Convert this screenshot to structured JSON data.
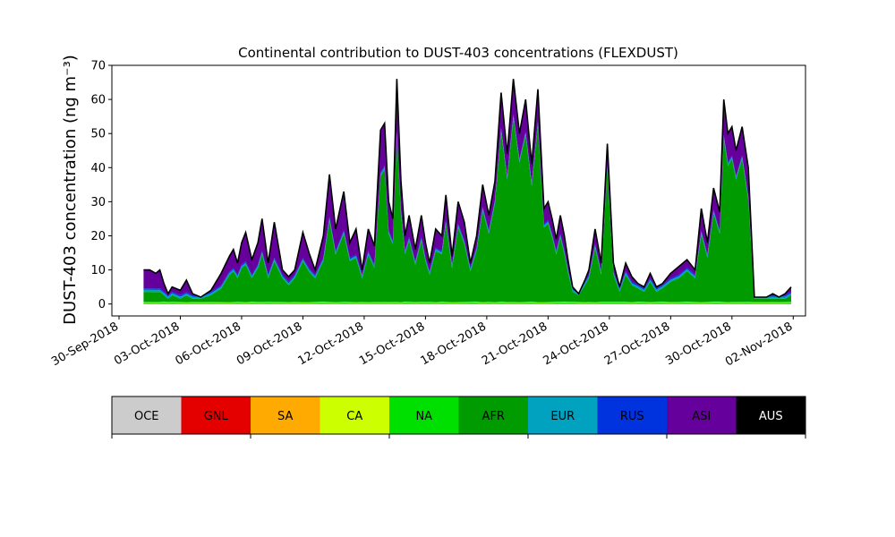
{
  "chart_data": {
    "type": "area",
    "title": "Continental contribution to DUST-403 concentrations (FLEXDUST)",
    "ylabel": "DUST-403 concentration (ng m⁻³)",
    "xlabel": "",
    "ylim": [
      -3.5,
      70
    ],
    "y_ticks": [
      0,
      10,
      20,
      30,
      40,
      50,
      60,
      70
    ],
    "x_ticks": [
      "30-Sep-2018",
      "03-Oct-2018",
      "06-Oct-2018",
      "09-Oct-2018",
      "12-Oct-2018",
      "15-Oct-2018",
      "18-Oct-2018",
      "21-Oct-2018",
      "24-Oct-2018",
      "27-Oct-2018",
      "30-Oct-2018",
      "02-Nov-2018"
    ],
    "xlim_days": [
      -0.35,
      33.6
    ],
    "x_unit": "days after 30-Sep-2018",
    "grid": false,
    "legend": {
      "placement": "bottom colorbar",
      "entries": [
        {
          "name": "OCE",
          "color": "#cccccc",
          "text_color": "#000000"
        },
        {
          "name": "GNL",
          "color": "#e50000",
          "text_color": "#000000"
        },
        {
          "name": "SA",
          "color": "#ffaa00",
          "text_color": "#000000"
        },
        {
          "name": "CA",
          "color": "#ccff00",
          "text_color": "#000000"
        },
        {
          "name": "NA",
          "color": "#00e000",
          "text_color": "#000000"
        },
        {
          "name": "AFR",
          "color": "#009b00",
          "text_color": "#000000"
        },
        {
          "name": "EUR",
          "color": "#00a2bf",
          "text_color": "#000000"
        },
        {
          "name": "RUS",
          "color": "#0033dd",
          "text_color": "#000000"
        },
        {
          "name": "ASI",
          "color": "#66009d",
          "text_color": "#000000"
        },
        {
          "name": "AUS",
          "color": "#000000",
          "text_color": "#ffffff"
        }
      ]
    },
    "series_stacked": {
      "x_days": [
        1.2,
        1.5,
        1.8,
        2.0,
        2.2,
        2.4,
        2.6,
        3.0,
        3.3,
        3.6,
        4.0,
        4.5,
        5.0,
        5.4,
        5.6,
        5.8,
        6.0,
        6.2,
        6.5,
        6.8,
        7.0,
        7.3,
        7.6,
        8.0,
        8.3,
        8.6,
        9.0,
        9.3,
        9.6,
        10.0,
        10.3,
        10.6,
        11.0,
        11.3,
        11.6,
        11.9,
        12.2,
        12.5,
        12.8,
        13.0,
        13.2,
        13.4,
        13.6,
        13.8,
        14.0,
        14.2,
        14.5,
        14.8,
        15.0,
        15.2,
        15.5,
        15.8,
        16.0,
        16.3,
        16.6,
        16.9,
        17.2,
        17.5,
        17.8,
        18.1,
        18.4,
        18.7,
        19.0,
        19.3,
        19.6,
        19.9,
        20.2,
        20.5,
        20.8,
        21.0,
        21.2,
        21.4,
        21.6,
        21.8,
        22.0,
        22.2,
        22.5,
        22.8,
        23.0,
        23.3,
        23.6,
        23.9,
        24.2,
        24.5,
        24.8,
        25.1,
        25.4,
        25.7,
        26.0,
        26.3,
        26.6,
        27.0,
        27.4,
        27.8,
        28.2,
        28.5,
        28.8,
        29.1,
        29.4,
        29.6,
        29.8,
        30.0,
        30.2,
        30.5,
        30.8,
        31.1,
        31.4,
        31.7,
        32.0,
        32.3,
        32.6,
        32.9
      ],
      "total": [
        10,
        10,
        9,
        10,
        6,
        3,
        5,
        4,
        7,
        3,
        2,
        4,
        9,
        14,
        16,
        12,
        18,
        21,
        13,
        18,
        25,
        12,
        24,
        10,
        8,
        10,
        21,
        15,
        10,
        20,
        38,
        22,
        33,
        18,
        22,
        10,
        22,
        17,
        51,
        53,
        30,
        25,
        66,
        36,
        20,
        26,
        16,
        26,
        18,
        12,
        22,
        20,
        32,
        14,
        30,
        24,
        12,
        20,
        35,
        26,
        36,
        62,
        44,
        66,
        50,
        60,
        41,
        63,
        28,
        30,
        25,
        19,
        26,
        20,
        12,
        5,
        3,
        7,
        10,
        22,
        12,
        47,
        12,
        5,
        12,
        8,
        6,
        5,
        9,
        5,
        6,
        9,
        11,
        13,
        10,
        28,
        18,
        34,
        27,
        60,
        50,
        52,
        45,
        52,
        40,
        2,
        2,
        2,
        3,
        2,
        3,
        5
      ],
      "AFR": [
        3,
        3,
        3,
        3,
        2,
        1,
        2,
        1,
        2,
        1,
        1,
        2,
        4,
        8,
        9,
        7,
        10,
        11,
        7,
        10,
        14,
        7,
        12,
        7,
        5,
        7,
        12,
        9,
        7,
        12,
        24,
        14,
        20,
        12,
        13,
        7,
        14,
        10,
        37,
        39,
        20,
        17,
        49,
        26,
        14,
        18,
        11,
        18,
        12,
        8,
        15,
        14,
        23,
        10,
        22,
        17,
        9,
        15,
        27,
        20,
        29,
        50,
        36,
        54,
        41,
        49,
        34,
        52,
        22,
        23,
        19,
        14,
        19,
        14,
        8,
        3,
        2,
        5,
        7,
        16,
        8,
        39,
        8,
        3,
        8,
        5,
        4,
        3,
        6,
        3,
        4,
        6,
        7,
        9,
        7,
        20,
        13,
        26,
        20,
        48,
        40,
        42,
        36,
        42,
        30,
        1,
        1,
        1,
        1,
        1,
        1,
        2
      ]
    }
  }
}
